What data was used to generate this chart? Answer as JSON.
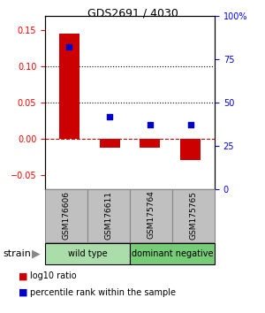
{
  "title": "GDS2691 / 4030",
  "samples": [
    "GSM176606",
    "GSM176611",
    "GSM175764",
    "GSM175765"
  ],
  "log10_ratio": [
    0.145,
    -0.012,
    -0.012,
    -0.03
  ],
  "percentile_rank": [
    82,
    42,
    37,
    37
  ],
  "groups": [
    {
      "label": "wild type",
      "samples": [
        0,
        1
      ],
      "color": "#aaddaa"
    },
    {
      "label": "dominant negative",
      "samples": [
        2,
        3
      ],
      "color": "#77cc77"
    }
  ],
  "bar_color": "#CC0000",
  "dot_color": "#0000CC",
  "left_ylim": [
    -0.07,
    0.17
  ],
  "right_ylim": [
    0,
    100
  ],
  "left_yticks": [
    -0.05,
    0,
    0.05,
    0.1,
    0.15
  ],
  "right_yticks": [
    0,
    25,
    50,
    75,
    100
  ],
  "hlines_dotted": [
    0.05,
    0.1
  ],
  "hline_dash_color": "#CC0000",
  "strain_label": "strain",
  "arrow": "▶",
  "legend_items": [
    {
      "label": "log10 ratio",
      "color": "#CC0000"
    },
    {
      "label": "percentile rank within the sample",
      "color": "#0000CC"
    }
  ],
  "sample_box_color": "#C0C0C0",
  "sample_box_edgecolor": "#888888",
  "figsize": [
    3.0,
    3.54
  ],
  "dpi": 100
}
